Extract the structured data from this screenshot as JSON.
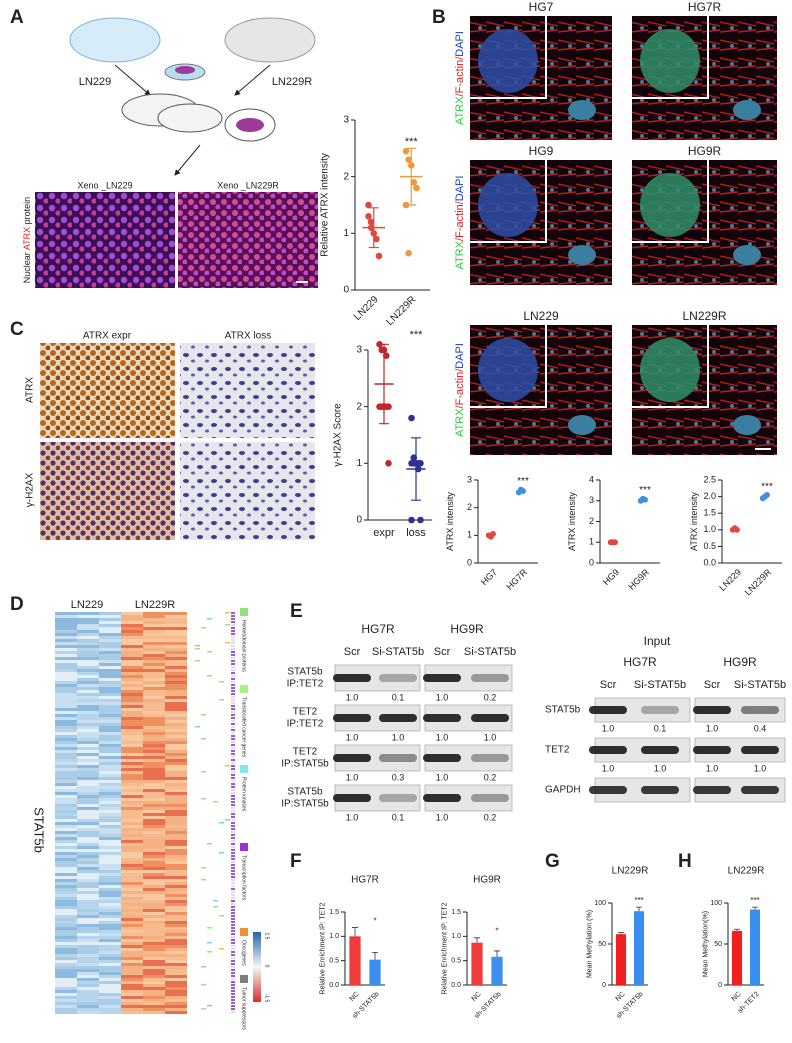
{
  "panel_letters": [
    "A",
    "B",
    "C",
    "D",
    "E",
    "F",
    "G",
    "H"
  ],
  "panel_a": {
    "left_cell": "LN229",
    "right_cell": "LN229R",
    "image_titles": [
      "Xeno _LN229",
      "Xeno _LN229R"
    ],
    "ylabel_parts": [
      "Nuclear ",
      "ATRX",
      " protein"
    ]
  },
  "panel_b": {
    "titles": [
      "HG7",
      "HG7R",
      "HG9",
      "HG9R",
      "LN229",
      "LN229R"
    ],
    "stain_parts": [
      "ATRX",
      "/F-actin/",
      "DAPI"
    ]
  },
  "panel_c": {
    "columns": [
      "ATRX expr",
      "ATRX loss"
    ],
    "rows": [
      "ATRX",
      "γ-H2AX"
    ]
  },
  "panel_d": {
    "groups": [
      "LN229",
      "LN229R"
    ],
    "gene": "STAT5b",
    "categories": [
      "Homeodomain proteins",
      "Translocated cancer genes",
      "Protein kinases",
      "Transcription factors",
      "Oncogenes",
      "Tumor suppressors"
    ],
    "scale": [
      "1.5",
      "0",
      "-1.5"
    ]
  },
  "panel_e": {
    "cells": [
      "HG7R",
      "HG9R"
    ],
    "lanes": [
      "Scr",
      "Si-STAT5b"
    ],
    "ip_rows": [
      {
        "label": [
          "STAT5b",
          "IP:TET2"
        ],
        "quant": [
          "1.0",
          "0.1",
          "1.0",
          "0.2"
        ]
      },
      {
        "label": [
          "TET2",
          "IP:TET2"
        ],
        "quant": [
          "1.0",
          "1.0",
          "1.0",
          "1.0"
        ]
      },
      {
        "label": [
          "TET2",
          "IP:STAT5b"
        ],
        "quant": [
          "1.0",
          "0.3",
          "1.0",
          "0.2"
        ]
      },
      {
        "label": [
          "STAT5b",
          "IP:STAT5b"
        ],
        "quant": [
          "1.0",
          "0.1",
          "1.0",
          "0.2"
        ]
      }
    ],
    "input_title": "Input",
    "input_rows": [
      {
        "label": "STAT5b",
        "quant": [
          "1.0",
          "0.1",
          "1.0",
          "0.4"
        ]
      },
      {
        "label": "TET2",
        "quant": [
          "1.0",
          "1.0",
          "1.0",
          "1.0"
        ]
      },
      {
        "label": "GAPDH"
      }
    ]
  },
  "chart_data": [
    {
      "type": "strip",
      "ylabel": "Relative ATRX intensity",
      "categories": [
        "LN229",
        "LN229R"
      ],
      "values": [
        [
          1.3,
          1.2,
          1.0,
          0.9,
          0.6,
          1.5,
          1.1
        ],
        [
          2.45,
          2.3,
          2.2,
          1.9,
          1.8,
          1.5,
          0.65
        ]
      ],
      "means": [
        1.1,
        2.0
      ],
      "errors": [
        0.35,
        0.5
      ],
      "colors": [
        "#e0483e",
        "#ef9a3a"
      ],
      "ylim": [
        0,
        3
      ],
      "yticks": [
        0,
        1,
        2,
        3
      ],
      "annotation": "***"
    },
    {
      "type": "strip",
      "ylabel": "γ-H2AX Score",
      "categories": [
        "expr",
        "loss"
      ],
      "values": [
        [
          3.1,
          3.0,
          3.0,
          2.9,
          2.0,
          2.0,
          2.0,
          2.0,
          2.0,
          1.0
        ],
        [
          1.8,
          1.1,
          1.0,
          1.0,
          1.0,
          1.0,
          1.0,
          1.0,
          0.9,
          0.0,
          0.0
        ]
      ],
      "means": [
        2.4,
        0.9
      ],
      "errors": [
        0.7,
        0.55
      ],
      "colors": [
        "#c1272d",
        "#2e3192"
      ],
      "ylim": [
        0,
        3
      ],
      "yticks": [
        0,
        1,
        2,
        3
      ],
      "annotation": "***"
    },
    {
      "type": "strip",
      "ylabel": "ATRX intensity",
      "categories": [
        "HG7",
        "HG7R"
      ],
      "values": [
        [
          1.0,
          0.95,
          1.05
        ],
        [
          2.55,
          2.65,
          2.6
        ]
      ],
      "colors": [
        "#e0483e",
        "#3d8fe0"
      ],
      "ylim": [
        0,
        3
      ],
      "yticks": [
        0,
        1,
        2,
        3
      ],
      "annotation": "***"
    },
    {
      "type": "strip",
      "ylabel": "ATRX intensity",
      "categories": [
        "HG9",
        "HG9R"
      ],
      "values": [
        [
          1.0,
          1.0,
          1.0
        ],
        [
          3.0,
          3.1,
          3.05
        ]
      ],
      "colors": [
        "#e0483e",
        "#3d8fe0"
      ],
      "ylim": [
        0,
        4
      ],
      "yticks": [
        0,
        1,
        2,
        3,
        4
      ],
      "annotation": "***"
    },
    {
      "type": "strip",
      "ylabel": "ATRX intensity",
      "categories": [
        "LN229",
        "LN229R"
      ],
      "values": [
        [
          1.0,
          1.05,
          1.0
        ],
        [
          1.95,
          2.0,
          2.05
        ]
      ],
      "colors": [
        "#e0483e",
        "#3d8fe0"
      ],
      "ylim": [
        0,
        2.5
      ],
      "yticks": [
        {
          "value": 0,
          "label": "0.0"
        },
        {
          "value": 0.5,
          "label": "0.5"
        },
        {
          "value": 1,
          "label": "1.0"
        },
        {
          "value": 1.5,
          "label": "1.5"
        },
        {
          "value": 2,
          "label": "2.0"
        },
        {
          "value": 2.5,
          "label": "2.5"
        }
      ],
      "annotation": "***"
    },
    {
      "type": "bar",
      "title": "HG7R",
      "ylabel": "Relative  Enrichment IP: TET2",
      "categories": [
        "NC",
        "sh-STAT5b"
      ],
      "values": [
        1.0,
        0.52
      ],
      "errors": [
        0.18,
        0.15
      ],
      "colors": [
        "#f03c3c",
        "#3c8ef0"
      ],
      "ylim": [
        0,
        1.5
      ],
      "yticks": [
        {
          "value": 0,
          "label": "0.0"
        },
        {
          "value": 0.5,
          "label": "0.5"
        },
        {
          "value": 1,
          "label": "1.0"
        },
        {
          "value": 1.5,
          "label": "1.5"
        }
      ],
      "annotation": "*"
    },
    {
      "type": "bar",
      "title": "HG9R",
      "ylabel": "Relative  Enrichment IP: TET2",
      "categories": [
        "NC",
        "sh-STAT5b"
      ],
      "values": [
        0.87,
        0.58
      ],
      "errors": [
        0.1,
        0.12
      ],
      "colors": [
        "#f03c3c",
        "#3c8ef0"
      ],
      "ylim": [
        0,
        1.5
      ],
      "yticks": [
        {
          "value": 0,
          "label": "0.0"
        },
        {
          "value": 0.5,
          "label": "0.5"
        },
        {
          "value": 1,
          "label": "1.0"
        },
        {
          "value": 1.5,
          "label": "1.5"
        }
      ],
      "annotation": "*"
    },
    {
      "type": "bar",
      "title": "LN229R",
      "ylabel": "Mean Methylation (%)",
      "categories": [
        "NC",
        "sh-STAT5b"
      ],
      "values": [
        62,
        90
      ],
      "errors": [
        2,
        5
      ],
      "colors": [
        "#f02020",
        "#3a8ef0"
      ],
      "ylim": [
        0,
        100
      ],
      "yticks": [
        0,
        50,
        100
      ],
      "annotation": "***"
    },
    {
      "type": "bar",
      "title": "LN229R",
      "ylabel": "Mean Methylation(%)",
      "categories": [
        "NC",
        "sh-TET2"
      ],
      "values": [
        66,
        92
      ],
      "errors": [
        2,
        3
      ],
      "colors": [
        "#f02020",
        "#3a8ef0"
      ],
      "ylim": [
        0,
        100
      ],
      "yticks": [
        0,
        50,
        100
      ],
      "annotation": "***"
    }
  ]
}
